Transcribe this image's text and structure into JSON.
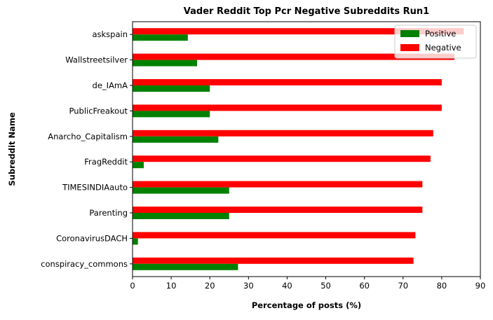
{
  "chart_data": {
    "type": "bar",
    "orientation": "horizontal",
    "title": "Vader Reddit Top Pcr Negative Subreddits Run1",
    "xlabel": "Percentage of posts (%)",
    "ylabel": "Subreddit Name",
    "xlim": [
      0,
      90
    ],
    "xticks": [
      0,
      10,
      20,
      30,
      40,
      50,
      60,
      70,
      80,
      90
    ],
    "grid": false,
    "legend_position": "top-right",
    "categories": [
      "askspain",
      "Wallstreetsilver",
      "de_IAmA",
      "PublicFreakout",
      "Anarcho_Capitalism",
      "FragReddit",
      "TIMESINDIAauto",
      "Parenting",
      "CoronavirusDACH",
      "conspiracy_commons"
    ],
    "series": [
      {
        "name": "Positive",
        "color": "#008000",
        "values": [
          14.3,
          16.7,
          20.0,
          20.0,
          22.2,
          2.9,
          25.0,
          25.0,
          1.4,
          27.3
        ]
      },
      {
        "name": "Negative",
        "color": "#ff0000",
        "values": [
          85.7,
          83.3,
          80.0,
          80.0,
          77.8,
          77.1,
          75.0,
          75.0,
          73.2,
          72.7
        ]
      }
    ]
  }
}
